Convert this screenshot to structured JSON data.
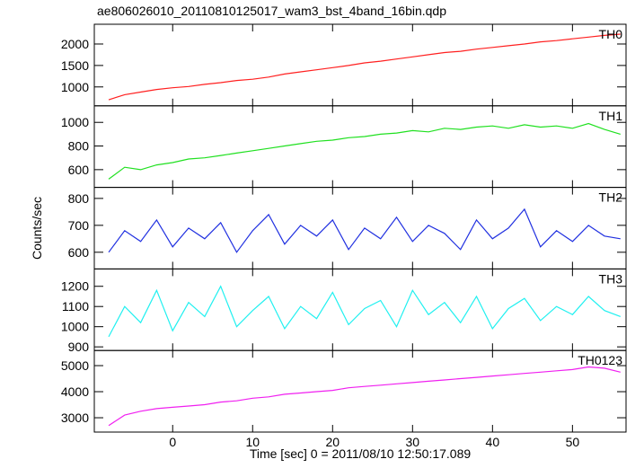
{
  "chart_data": {
    "type": "line",
    "title": "ae806026010_20110810125017_wam3_bst_4band_16bin.qdp",
    "xlabel": "Time [sec] 0 = 2011/08/10 12:50:17.089",
    "ylabel": "Counts/sec",
    "xlim": [
      -9.8,
      56.7
    ],
    "xticks": [
      0,
      10,
      20,
      30,
      40,
      50
    ],
    "x": [
      -8,
      -6,
      -4,
      -2,
      0,
      2,
      4,
      6,
      8,
      10,
      12,
      14,
      16,
      18,
      20,
      22,
      24,
      26,
      28,
      30,
      32,
      34,
      36,
      38,
      40,
      42,
      44,
      46,
      48,
      50,
      52,
      54,
      56
    ],
    "series": [
      {
        "name": "TH0",
        "color": "#ff2020",
        "ylim": [
          560,
          2460
        ],
        "yticks": [
          1000,
          1500,
          2000
        ],
        "values": [
          700,
          820,
          880,
          940,
          980,
          1010,
          1060,
          1100,
          1150,
          1180,
          1230,
          1300,
          1350,
          1400,
          1450,
          1500,
          1560,
          1600,
          1650,
          1700,
          1750,
          1800,
          1830,
          1880,
          1920,
          1960,
          2000,
          2050,
          2080,
          2120,
          2160,
          2200,
          2230
        ]
      },
      {
        "name": "TH1",
        "color": "#20e020",
        "ylim": [
          450,
          1140
        ],
        "yticks": [
          600,
          800,
          1000
        ],
        "values": [
          520,
          620,
          600,
          640,
          660,
          690,
          700,
          720,
          740,
          760,
          780,
          800,
          820,
          840,
          850,
          870,
          880,
          900,
          910,
          930,
          920,
          950,
          940,
          960,
          970,
          950,
          980,
          960,
          970,
          950,
          990,
          940,
          900
        ]
      },
      {
        "name": "TH2",
        "color": "#2030e0",
        "ylim": [
          538,
          841
        ],
        "yticks": [
          600,
          700,
          800
        ],
        "values": [
          600,
          680,
          640,
          720,
          620,
          690,
          650,
          710,
          600,
          680,
          740,
          630,
          700,
          660,
          720,
          610,
          690,
          650,
          730,
          640,
          700,
          670,
          610,
          720,
          650,
          690,
          760,
          620,
          680,
          640,
          700,
          660,
          650
        ]
      },
      {
        "name": "TH3",
        "color": "#20f0f0",
        "ylim": [
          882,
          1286
        ],
        "yticks": [
          900,
          1000,
          1100,
          1200
        ],
        "values": [
          950,
          1100,
          1020,
          1180,
          980,
          1120,
          1050,
          1200,
          1000,
          1080,
          1150,
          990,
          1100,
          1040,
          1170,
          1010,
          1090,
          1130,
          1000,
          1180,
          1060,
          1120,
          1020,
          1150,
          990,
          1090,
          1140,
          1030,
          1100,
          1060,
          1150,
          1080,
          1050
        ]
      },
      {
        "name": "TH0123",
        "color": "#f020f0",
        "ylim": [
          2450,
          5580
        ],
        "yticks": [
          3000,
          4000,
          5000
        ],
        "values": [
          2700,
          3100,
          3250,
          3350,
          3400,
          3450,
          3500,
          3600,
          3650,
          3750,
          3800,
          3900,
          3950,
          4000,
          4050,
          4150,
          4200,
          4250,
          4300,
          4350,
          4400,
          4450,
          4500,
          4550,
          4600,
          4650,
          4700,
          4750,
          4800,
          4850,
          4950,
          4900,
          4750
        ]
      }
    ]
  }
}
